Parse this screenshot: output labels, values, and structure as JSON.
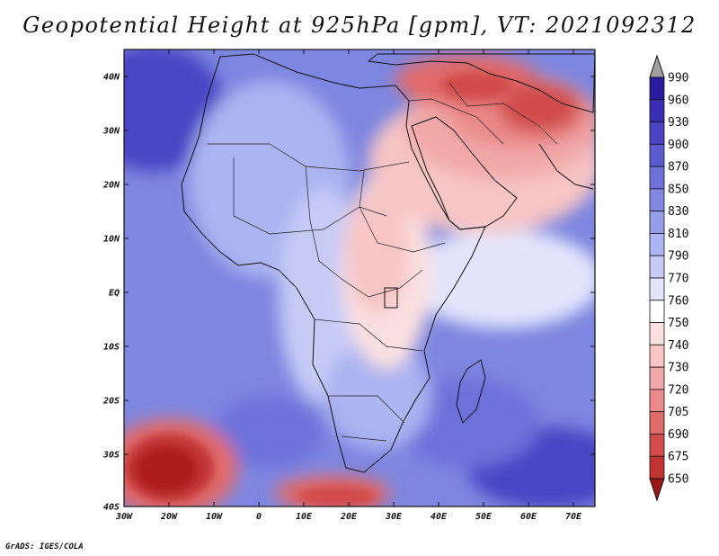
{
  "title": "Geopotential Height at 925hPa [gpm], VT: 2021092312",
  "credit": "GrADS: IGES/COLA",
  "map": {
    "region": "Africa and Middle East",
    "lon_range": [
      -30,
      75
    ],
    "lat_range": [
      -40,
      45
    ],
    "lon_ticks": [
      "30W",
      "20W",
      "10W",
      "0",
      "10E",
      "20E",
      "30E",
      "40E",
      "50E",
      "60E",
      "70E"
    ],
    "lat_ticks": [
      "40N",
      "30N",
      "20N",
      "10N",
      "EQ",
      "10S",
      "20S",
      "30S",
      "40S"
    ]
  },
  "colorbar": {
    "labels": [
      "990",
      "960",
      "930",
      "900",
      "870",
      "850",
      "830",
      "810",
      "790",
      "770",
      "760",
      "750",
      "740",
      "730",
      "720",
      "705",
      "690",
      "675",
      "650"
    ],
    "colors": [
      "#2a1a9e",
      "#3a2fb4",
      "#4a44c4",
      "#5b5bd0",
      "#6d72da",
      "#8088e2",
      "#959eea",
      "#acb4f1",
      "#c6cbf6",
      "#e2e5fb",
      "#ffffff",
      "#fbe0e0",
      "#f7c5c5",
      "#f1a8a8",
      "#ea8a8a",
      "#e06b6b",
      "#d24c4c",
      "#c23434",
      "#ad1f1f",
      "#9a1414"
    ]
  }
}
